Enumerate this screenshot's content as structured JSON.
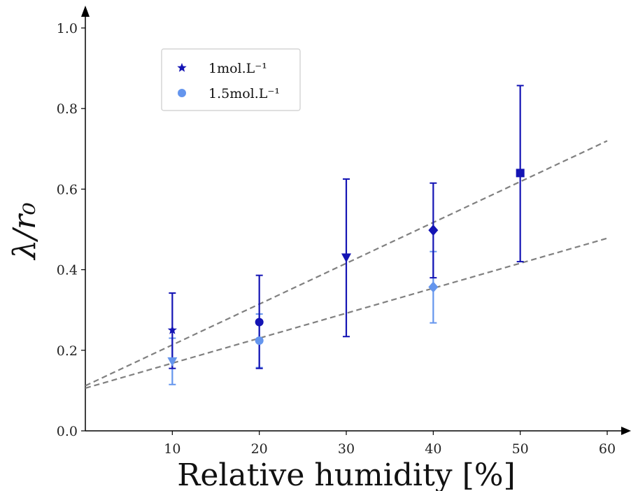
{
  "chart_data": {
    "type": "scatter",
    "xlabel": "Relative humidity [%]",
    "ylabel": "λ/r₀",
    "xlim": [
      0,
      60
    ],
    "ylim": [
      0,
      1.0
    ],
    "xticks": [
      10,
      20,
      30,
      40,
      50,
      60
    ],
    "yticks": [
      "0.0",
      "0.2",
      "0.4",
      "0.6",
      "0.8",
      "1.0"
    ],
    "grid": false,
    "legend_position": "upper-left",
    "series": [
      {
        "name": "1mol.L⁻¹",
        "color": "#1414b4",
        "points": [
          {
            "x": 10,
            "y": 0.25,
            "err_low": 0.155,
            "err_high": 0.342,
            "marker": "star"
          },
          {
            "x": 20,
            "y": 0.27,
            "err_low": 0.155,
            "err_high": 0.386,
            "marker": "circle"
          },
          {
            "x": 30,
            "y": 0.43,
            "err_low": 0.234,
            "err_high": 0.625,
            "marker": "triangle-down"
          },
          {
            "x": 40,
            "y": 0.498,
            "err_low": 0.38,
            "err_high": 0.615,
            "marker": "diamond"
          },
          {
            "x": 50,
            "y": 0.64,
            "err_low": 0.42,
            "err_high": 0.857,
            "marker": "square"
          }
        ],
        "fit": {
          "intercept": 0.112,
          "slope": 0.01013
        }
      },
      {
        "name": "1.5mol.L⁻¹",
        "color": "#6495ed",
        "points": [
          {
            "x": 10,
            "y": 0.172,
            "err_low": 0.115,
            "err_high": 0.23,
            "marker": "triangle-down"
          },
          {
            "x": 20,
            "y": 0.224,
            "err_low": 0.157,
            "err_high": 0.29,
            "marker": "circle"
          },
          {
            "x": 40,
            "y": 0.357,
            "err_low": 0.268,
            "err_high": 0.445,
            "marker": "diamond"
          }
        ],
        "fit": {
          "intercept": 0.106,
          "slope": 0.0062
        }
      }
    ],
    "fit_line_color": "#808080"
  }
}
